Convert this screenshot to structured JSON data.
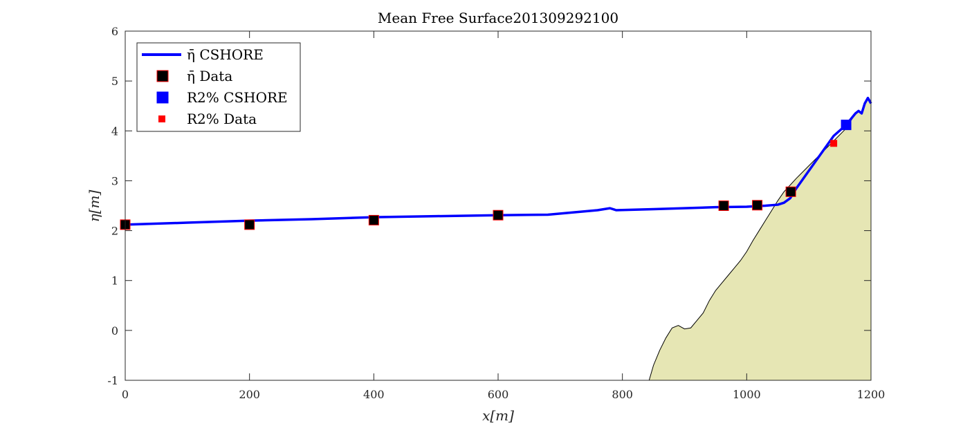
{
  "chart_data": {
    "type": "line",
    "title": "Mean Free Surface201309292100",
    "xlabel": "x[m]",
    "ylabel": "η[m]",
    "xlim": [
      0,
      1200
    ],
    "ylim": [
      -1,
      6
    ],
    "xticks": [
      0,
      200,
      400,
      600,
      800,
      1000,
      1200
    ],
    "yticks": [
      -1,
      0,
      1,
      2,
      3,
      4,
      5,
      6
    ],
    "grid": false,
    "legend_position": "top-left",
    "legend": [
      {
        "label": "η̄ CSHORE",
        "marker": "line",
        "color": "#0000ff"
      },
      {
        "label": "η̄ Data",
        "marker": "square",
        "color": "#000000",
        "edge": "#ff0000"
      },
      {
        "label": "R2% CSHORE",
        "marker": "square",
        "color": "#0000ff"
      },
      {
        "label": "R2% Data",
        "marker": "square-small",
        "color": "#ff0000"
      }
    ],
    "series": [
      {
        "name": "η̄ CSHORE",
        "style": "line",
        "color": "#0000ff",
        "x": [
          0,
          100,
          200,
          300,
          400,
          500,
          600,
          680,
          760,
          780,
          790,
          850,
          950,
          1000,
          1030,
          1050,
          1060,
          1070,
          1080,
          1100,
          1120,
          1140,
          1160,
          1175,
          1180,
          1185,
          1190,
          1195,
          1200
        ],
        "y": [
          2.12,
          2.16,
          2.2,
          2.23,
          2.27,
          2.29,
          2.31,
          2.32,
          2.41,
          2.45,
          2.41,
          2.43,
          2.47,
          2.48,
          2.5,
          2.52,
          2.56,
          2.65,
          2.85,
          3.2,
          3.55,
          3.9,
          4.12,
          4.35,
          4.4,
          4.35,
          4.55,
          4.66,
          4.55
        ]
      },
      {
        "name": "η̄ Data",
        "style": "square",
        "color": "#000000",
        "x": [
          0,
          200,
          400,
          600,
          963,
          1017,
          1071
        ],
        "y": [
          2.12,
          2.12,
          2.21,
          2.31,
          2.5,
          2.51,
          2.78
        ]
      },
      {
        "name": "R2% CSHORE",
        "style": "square",
        "color": "#0000ff",
        "x": [
          1160
        ],
        "y": [
          4.12
        ]
      },
      {
        "name": "R2% Data",
        "style": "square-small",
        "color": "#ff0000",
        "x": [
          1140
        ],
        "y": [
          3.75
        ]
      }
    ],
    "bathymetry": {
      "fill": "#e6e6b4",
      "x": [
        843,
        850,
        860,
        870,
        880,
        890,
        900,
        910,
        920,
        930,
        940,
        950,
        960,
        970,
        980,
        990,
        1000,
        1010,
        1020,
        1030,
        1040,
        1050,
        1060,
        1080,
        1100,
        1120,
        1140,
        1160,
        1175,
        1180,
        1185,
        1190,
        1195,
        1200
      ],
      "y": [
        -1,
        -0.7,
        -0.4,
        -0.15,
        0.05,
        0.1,
        0.03,
        0.05,
        0.2,
        0.35,
        0.6,
        0.8,
        0.95,
        1.1,
        1.25,
        1.4,
        1.58,
        1.8,
        2.0,
        2.2,
        2.4,
        2.6,
        2.78,
        3.05,
        3.3,
        3.55,
        3.8,
        4.05,
        4.35,
        4.4,
        4.35,
        4.55,
        4.66,
        4.55
      ]
    }
  }
}
